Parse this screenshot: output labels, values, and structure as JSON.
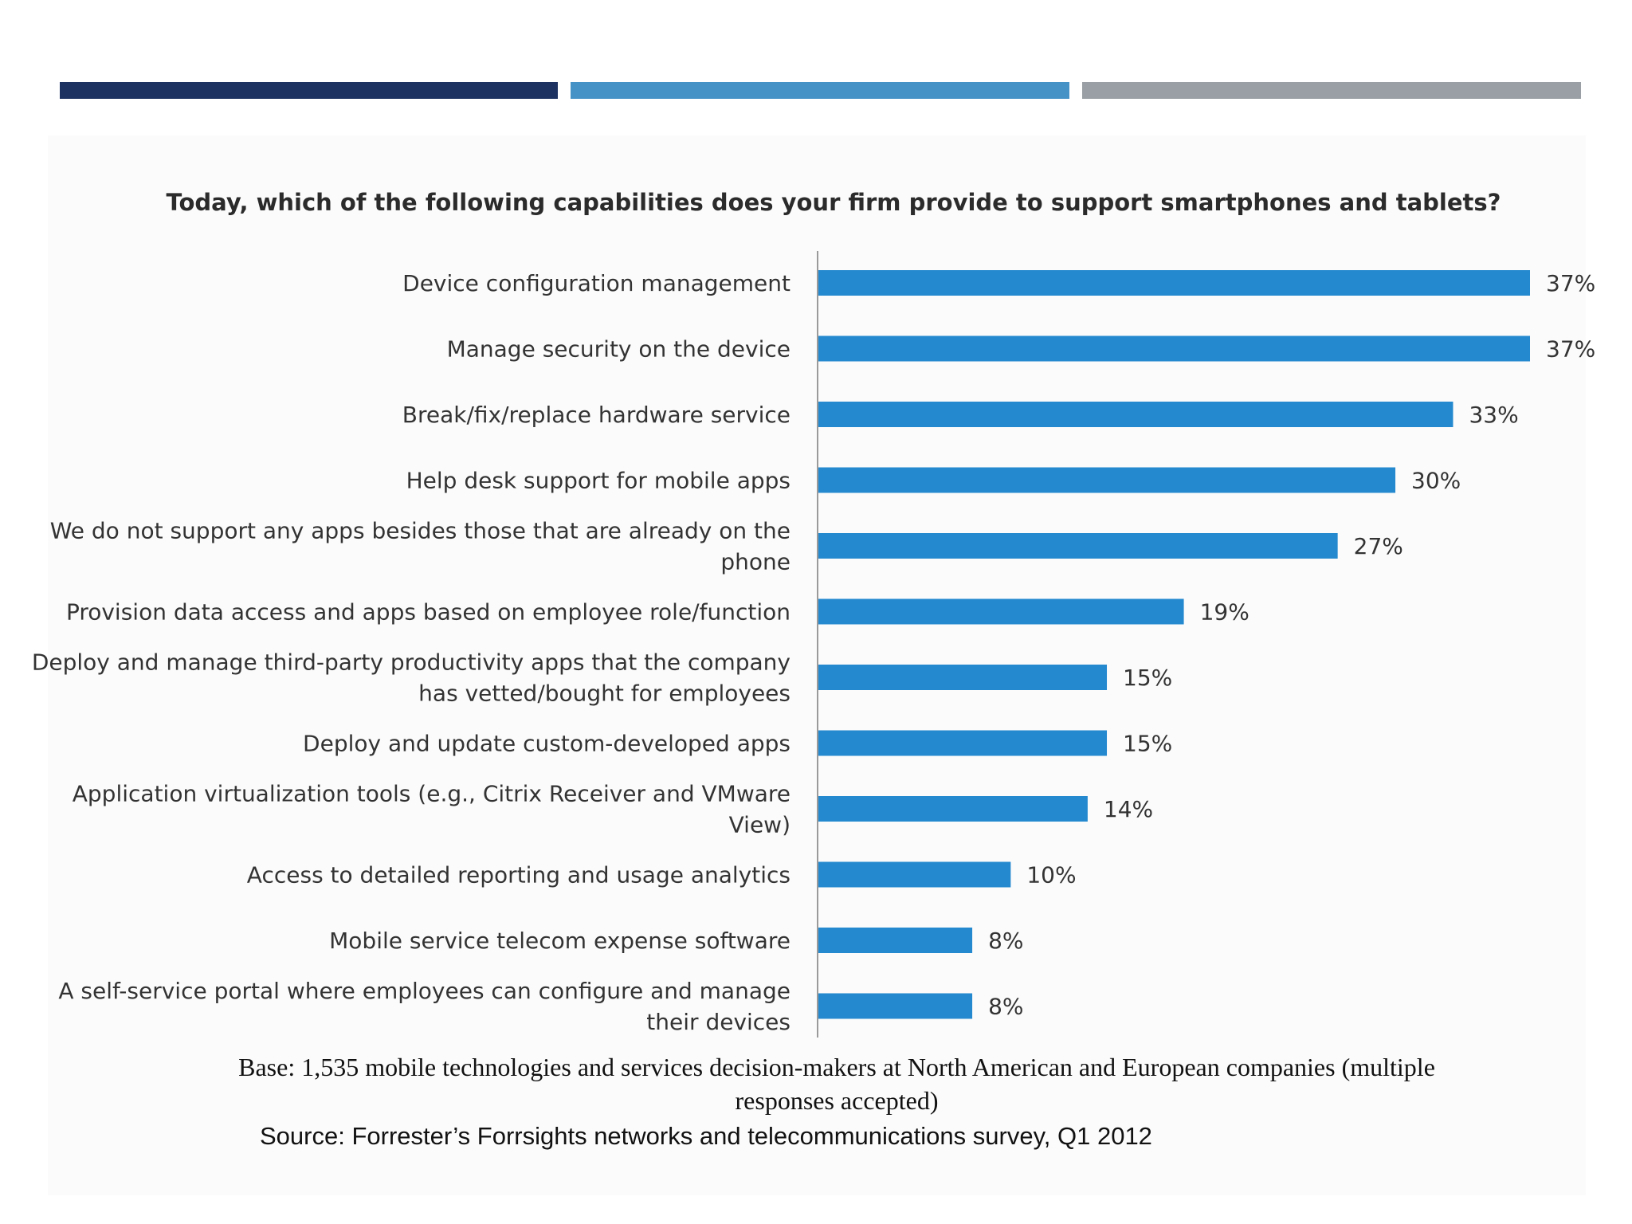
{
  "colors": {
    "bar": "#2489cf",
    "axis": "#9a9a9a",
    "topbar_1": "#1d3260",
    "topbar_2": "#4592c6",
    "topbar_3": "#999fa4",
    "text": "#333333"
  },
  "chart_data": {
    "type": "bar",
    "orientation": "horizontal",
    "title": "Today, which of the following capabilities does your firm provide to support smartphones and tablets?",
    "categories": [
      [
        "Device configuration management"
      ],
      [
        "Manage security on the device"
      ],
      [
        "Break/fix/replace hardware service"
      ],
      [
        "Help desk support for mobile apps"
      ],
      [
        "We do not support any apps besides those that are already on the",
        "phone"
      ],
      [
        "Provision data access and apps based on employee role/function"
      ],
      [
        "Deploy and manage third-party productivity apps that the company",
        "has vetted/bought for employees"
      ],
      [
        "Deploy and update custom-developed apps"
      ],
      [
        "Application virtualization tools (e.g., Citrix Receiver and VMware",
        "View)"
      ],
      [
        "Access to detailed reporting and usage analytics"
      ],
      [
        "Mobile service telecom expense software"
      ],
      [
        "A self-service portal where employees can configure and manage",
        "their devices"
      ]
    ],
    "values": [
      37,
      37,
      33,
      30,
      27,
      19,
      15,
      15,
      14,
      10,
      8,
      8
    ],
    "value_labels": [
      "37%",
      "37%",
      "33%",
      "30%",
      "27%",
      "19%",
      "15%",
      "15%",
      "14%",
      "10%",
      "8%",
      "8%"
    ],
    "xlim": [
      0,
      37
    ],
    "grid": false,
    "legend": "none"
  },
  "notes": {
    "base": "Base: 1,535 mobile technologies and services decision-makers at North American and European companies (multiple responses accepted)",
    "source": "Source: Forrester’s Forrsights networks and telecommunications survey, Q1 2012"
  }
}
